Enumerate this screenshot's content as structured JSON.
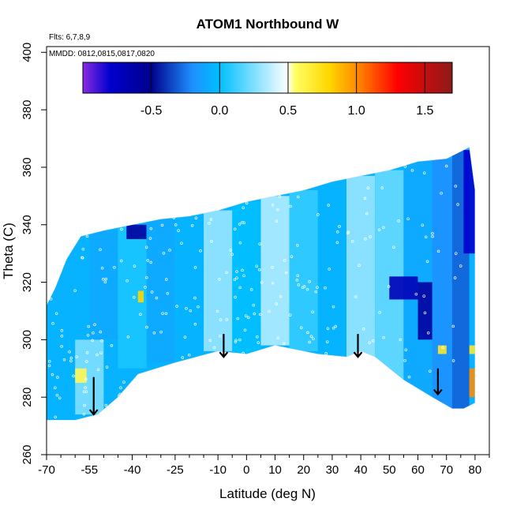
{
  "chart_data": {
    "type": "heatmap",
    "title": "ATOM1 Northbound W",
    "subtitle_flights": "Flts: 6,7,8,9",
    "subtitle_dates": "MMDD: 0812,0815,0817,0820",
    "xlabel": "Latitude (deg N)",
    "ylabel": "Theta (C)",
    "xlim": [
      -70,
      85
    ],
    "ylim": [
      260,
      402
    ],
    "x_ticks": [
      -70,
      -55,
      -40,
      -25,
      -10,
      0,
      10,
      20,
      30,
      40,
      50,
      60,
      70,
      80
    ],
    "x_minor_ticks": [
      -65,
      -60,
      -50,
      -45,
      -35,
      -30,
      -20,
      -15,
      -5,
      5,
      15,
      25,
      35,
      45,
      55,
      65,
      75,
      85
    ],
    "y_ticks": [
      260,
      280,
      300,
      320,
      340,
      360,
      380,
      400
    ],
    "colorbar": {
      "min": -1.0,
      "max": 1.7,
      "tick_values": [
        -0.5,
        0.0,
        0.5,
        1.0,
        1.5
      ],
      "tick_labels": [
        "-0.5",
        "0.0",
        "0.5",
        "1.0",
        "1.5"
      ],
      "colors": [
        "#8a2be2",
        "#0000cd",
        "#00008b",
        "#1e90ff",
        "#00bfff",
        "#ffffff",
        "#ffff66",
        "#ffd700",
        "#ff8c00",
        "#ff0000",
        "#8b1a1a"
      ],
      "color_stops": [
        -1.0,
        -0.8,
        -0.5,
        -0.2,
        0.0,
        0.5,
        0.55,
        0.8,
        1.0,
        1.3,
        1.7
      ]
    },
    "coverage_top": [
      [
        -70,
        312
      ],
      [
        -67,
        318
      ],
      [
        -63,
        328
      ],
      [
        -58,
        336
      ],
      [
        -50,
        338
      ],
      [
        -40,
        340
      ],
      [
        -30,
        342
      ],
      [
        -20,
        343
      ],
      [
        -10,
        345
      ],
      [
        0,
        348
      ],
      [
        10,
        350
      ],
      [
        20,
        352
      ],
      [
        30,
        355
      ],
      [
        40,
        357
      ],
      [
        50,
        359
      ],
      [
        60,
        362
      ],
      [
        70,
        363
      ],
      [
        76,
        366
      ],
      [
        78,
        367
      ],
      [
        80,
        352
      ]
    ],
    "coverage_bottom": [
      [
        -70,
        272
      ],
      [
        -60,
        272
      ],
      [
        -52,
        274
      ],
      [
        -45,
        280
      ],
      [
        -38,
        288
      ],
      [
        -25,
        292
      ],
      [
        -10,
        296
      ],
      [
        0,
        295
      ],
      [
        10,
        298
      ],
      [
        15,
        297
      ],
      [
        25,
        295
      ],
      [
        35,
        294
      ],
      [
        40,
        296
      ],
      [
        45,
        294
      ],
      [
        55,
        286
      ],
      [
        65,
        280
      ],
      [
        72,
        276
      ],
      [
        76,
        276
      ],
      [
        80,
        278
      ]
    ],
    "cells": [
      {
        "x": [
          -70,
          -60
        ],
        "y": [
          272,
          312
        ],
        "value": -0.05
      },
      {
        "x": [
          -60,
          -50
        ],
        "y": [
          274,
          300
        ],
        "value": 0.25
      },
      {
        "x": [
          -55,
          -45
        ],
        "y": [
          300,
          338
        ],
        "value": -0.1
      },
      {
        "x": [
          -45,
          -35
        ],
        "y": [
          290,
          340
        ],
        "value": 0.05
      },
      {
        "x": [
          -42,
          -35
        ],
        "y": [
          335,
          340
        ],
        "value": -0.6
      },
      {
        "x": [
          -35,
          -25
        ],
        "y": [
          292,
          342
        ],
        "value": -0.1
      },
      {
        "x": [
          -25,
          -15
        ],
        "y": [
          292,
          343
        ],
        "value": -0.05
      },
      {
        "x": [
          -15,
          -5
        ],
        "y": [
          296,
          345
        ],
        "value": 0.3
      },
      {
        "x": [
          -5,
          5
        ],
        "y": [
          295,
          348
        ],
        "value": 0.0
      },
      {
        "x": [
          5,
          15
        ],
        "y": [
          298,
          350
        ],
        "value": 0.35
      },
      {
        "x": [
          15,
          25
        ],
        "y": [
          296,
          352
        ],
        "value": 0.1
      },
      {
        "x": [
          25,
          35
        ],
        "y": [
          294,
          355
        ],
        "value": -0.05
      },
      {
        "x": [
          35,
          45
        ],
        "y": [
          294,
          357
        ],
        "value": 0.3
      },
      {
        "x": [
          45,
          55
        ],
        "y": [
          286,
          359
        ],
        "value": 0.2
      },
      {
        "x": [
          55,
          65
        ],
        "y": [
          280,
          362
        ],
        "value": -0.1
      },
      {
        "x": [
          50,
          60
        ],
        "y": [
          314,
          322
        ],
        "value": -0.7
      },
      {
        "x": [
          65,
          72
        ],
        "y": [
          276,
          363
        ],
        "value": -0.2
      },
      {
        "x": [
          72,
          78
        ],
        "y": [
          276,
          366
        ],
        "value": -0.3
      },
      {
        "x": [
          76,
          80
        ],
        "y": [
          330,
          366
        ],
        "value": -0.8
      },
      {
        "x": [
          60,
          65
        ],
        "y": [
          300,
          320
        ],
        "value": -0.6
      },
      {
        "x": [
          78,
          80
        ],
        "y": [
          280,
          290
        ],
        "value": 1.0
      },
      {
        "x": [
          78,
          80
        ],
        "y": [
          295,
          298
        ],
        "value": 0.7
      },
      {
        "x": [
          -38,
          -36
        ],
        "y": [
          313,
          317
        ],
        "value": 0.8
      },
      {
        "x": [
          -60,
          -56
        ],
        "y": [
          285,
          290
        ],
        "value": 0.6
      },
      {
        "x": [
          67,
          70
        ],
        "y": [
          295,
          298
        ],
        "value": 0.7
      }
    ],
    "arrows": [
      {
        "x": -53.5,
        "y_top": 287,
        "y_bottom": 274
      },
      {
        "x": -8,
        "y_top": 302,
        "y_bottom": 294
      },
      {
        "x": 39,
        "y_top": 302,
        "y_bottom": 294
      },
      {
        "x": 67,
        "y_top": 290,
        "y_bottom": 281
      }
    ]
  }
}
